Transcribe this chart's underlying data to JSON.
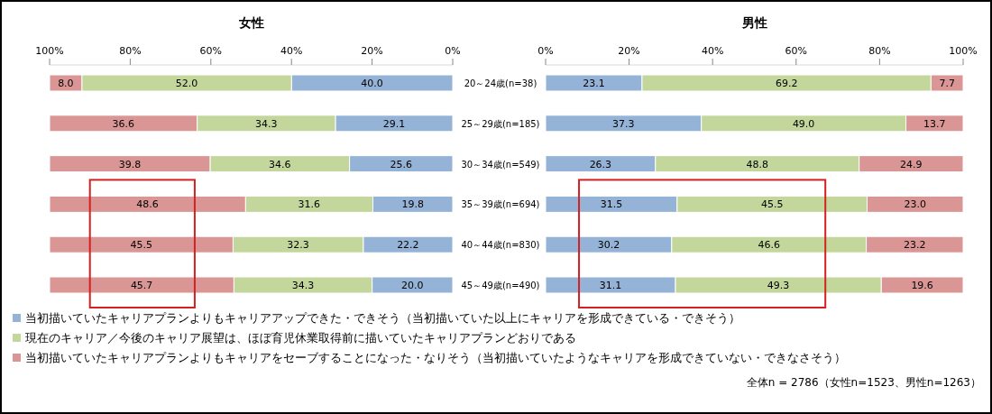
{
  "chart_data": [
    {
      "type": "bar",
      "orientation": "horizontal",
      "stacked": true,
      "title": "女性",
      "categories": [
        "20～24歳(n=38)",
        "25～29歳(n=185)",
        "30～34歳(n=549)",
        "35～39歳(n=694)",
        "40～44歳(n=830)",
        "45～49歳(n=490)"
      ],
      "series": [
        {
          "name": "当初描いていたキャリアプランよりもキャリアアップできた・できそう（当初描いていた以上にキャリアを形成できている・できそう）",
          "color": "#95b3d7",
          "values": [
            40.0,
            29.1,
            25.6,
            19.8,
            22.2,
            20.0
          ],
          "value_labels": [
            "40.0",
            "29.1",
            "25.6",
            "19.8",
            "22.2",
            "20.0"
          ]
        },
        {
          "name": "現在のキャリア／今後のキャリア展望は、ほぼ育児休業取得前に描いていたキャリアプランどおりである",
          "color": "#c3d69b",
          "values": [
            52.0,
            34.3,
            34.6,
            31.6,
            32.3,
            34.3
          ],
          "value_labels": [
            "52.0",
            "34.3",
            "34.6",
            "31.6",
            "32.3",
            "34.3"
          ]
        },
        {
          "name": "当初描いていたキャリアプランよりもキャリアをセーブすることになった・なりそう（当初描いていたようなキャリアを形成できていない・できなさそう）",
          "color": "#d99694",
          "values": [
            8.0,
            36.6,
            39.8,
            48.6,
            45.5,
            45.7
          ],
          "value_labels": [
            "8.0",
            "36.6",
            "39.8",
            "48.6",
            "45.5",
            "45.7"
          ]
        }
      ],
      "xlim": [
        100,
        0
      ],
      "xticks": [
        {
          "value": 100,
          "label": "100%"
        },
        {
          "value": 80,
          "label": "80%"
        },
        {
          "value": 60,
          "label": "60%"
        },
        {
          "value": 40,
          "label": "40%"
        },
        {
          "value": 20,
          "label": "20%"
        },
        {
          "value": 0,
          "label": "0%"
        }
      ],
      "legend": "bottom",
      "annotations": [
        "全体n = 2786（女性n=1523、男性n=1263）"
      ]
    },
    {
      "type": "bar",
      "orientation": "horizontal",
      "stacked": true,
      "title": "男性",
      "categories": [
        null,
        null,
        null,
        null,
        null,
        null
      ],
      "series": [
        {
          "color": "#95b3d7",
          "values": [
            23.1,
            37.3,
            26.3,
            31.5,
            30.2,
            31.1
          ],
          "value_labels": [
            "23.1",
            "37.3",
            "26.3",
            "31.5",
            "30.2",
            "31.1"
          ]
        },
        {
          "color": "#c3d69b",
          "values": [
            69.2,
            49.0,
            48.8,
            45.5,
            46.6,
            49.3
          ],
          "value_labels": [
            "69.2",
            "49.0",
            "48.8",
            "45.5",
            "46.6",
            "49.3"
          ]
        },
        {
          "color": "#d99694",
          "values": [
            7.7,
            13.7,
            24.9,
            23.0,
            23.2,
            19.6
          ],
          "value_labels": [
            "7.7",
            "13.7",
            "24.9",
            "23.0",
            "23.2",
            "19.6"
          ]
        }
      ],
      "xlim": [
        0,
        100
      ],
      "xticks": [
        {
          "value": 0,
          "label": "0%"
        },
        {
          "value": 20,
          "label": "20%"
        },
        {
          "value": 40,
          "label": "40%"
        },
        {
          "value": 60,
          "label": "60%"
        },
        {
          "value": 80,
          "label": "80%"
        },
        {
          "value": 100,
          "label": "100%"
        }
      ],
      "tick_labels": "x"
    }
  ]
}
